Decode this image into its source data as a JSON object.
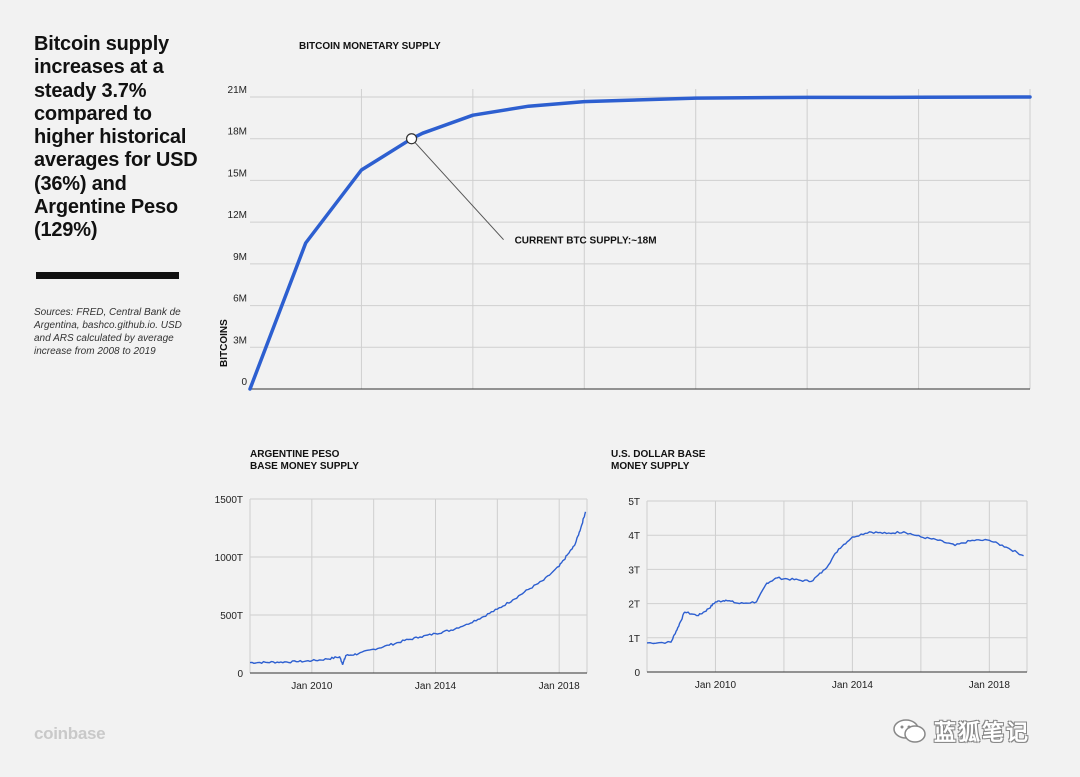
{
  "headline": "Bitcoin supply increases at a steady 3.7% compared to higher historical averages for USD (36%) and Argentine Peso (129%)",
  "sources": "Sources: FRED, Central Bank de Argentina, bashco.github.io. USD and ARS calculated by average increase from 2008 to 2019",
  "brand": "coinbase",
  "watermark": "蓝狐笔记",
  "colors": {
    "series": "#2d5fd0",
    "grid": "#cfcfcf",
    "background": "#f2f2f2",
    "text": "#111111"
  },
  "chart_data": [
    {
      "type": "line",
      "title": "BITCOIN MONETARY SUPPLY",
      "ylabel": "BITCOINS",
      "xlabel": "",
      "ylim": [
        0,
        21
      ],
      "y_tick_labels": [
        "0",
        "3M",
        "6M",
        "9M",
        "12M",
        "15M",
        "18M",
        "21M"
      ],
      "y_tick_values": [
        0,
        3,
        6,
        9,
        12,
        15,
        18,
        21
      ],
      "x_vertical_gridlines": 7,
      "grid": true,
      "series": [
        {
          "values_millions": [
            {
              "x": 0.0,
              "y": 0.0
            },
            {
              "x": 0.5,
              "y": 10.5
            },
            {
              "x": 1.0,
              "y": 15.75
            },
            {
              "x": 1.45,
              "y": 18.0
            },
            {
              "x": 1.55,
              "y": 18.4
            },
            {
              "x": 2.0,
              "y": 19.69
            },
            {
              "x": 2.5,
              "y": 20.34
            },
            {
              "x": 3.0,
              "y": 20.67
            },
            {
              "x": 4.0,
              "y": 20.92
            },
            {
              "x": 5.0,
              "y": 20.97
            },
            {
              "x": 6.0,
              "y": 20.98
            },
            {
              "x": 7.0,
              "y": 21.0
            }
          ]
        }
      ],
      "annotation": {
        "text": "CURRENT BTC SUPPLY:~18M",
        "x": 1.45,
        "y": 18.0
      }
    },
    {
      "type": "line",
      "title_lines": [
        "ARGENTINE PESO",
        "BASE MONEY SUPPLY"
      ],
      "ylim": [
        0,
        1500
      ],
      "y_tick_labels": [
        "0",
        "500T",
        "1000T",
        "1500T"
      ],
      "y_tick_values": [
        0,
        500,
        1000,
        1500
      ],
      "x_tick_labels": [
        "Jan 2010",
        "Jan 2014",
        "Jan 2018"
      ],
      "x_tick_values": [
        2010,
        2014,
        2018
      ],
      "xlim": [
        2008,
        2018.9
      ],
      "grid": true,
      "series": [
        {
          "points": [
            [
              2008.0,
              90
            ],
            [
              2008.5,
              92
            ],
            [
              2009.0,
              95
            ],
            [
              2009.5,
              97
            ],
            [
              2010.0,
              105
            ],
            [
              2010.5,
              120
            ],
            [
              2010.9,
              140
            ],
            [
              2011.0,
              75
            ],
            [
              2011.1,
              150
            ],
            [
              2011.5,
              165
            ],
            [
              2012.0,
              205
            ],
            [
              2012.5,
              240
            ],
            [
              2013.0,
              280
            ],
            [
              2013.5,
              310
            ],
            [
              2014.0,
              340
            ],
            [
              2014.5,
              370
            ],
            [
              2015.0,
              420
            ],
            [
              2015.5,
              480
            ],
            [
              2016.0,
              550
            ],
            [
              2016.5,
              630
            ],
            [
              2017.0,
              720
            ],
            [
              2017.5,
              800
            ],
            [
              2018.0,
              920
            ],
            [
              2018.3,
              1030
            ],
            [
              2018.5,
              1100
            ],
            [
              2018.7,
              1250
            ],
            [
              2018.85,
              1390
            ]
          ]
        }
      ]
    },
    {
      "type": "line",
      "title_lines": [
        "U.S. DOLLAR BASE",
        "MONEY SUPPLY"
      ],
      "ylim": [
        0,
        5
      ],
      "y_tick_labels": [
        "0",
        "1T",
        "2T",
        "3T",
        "4T",
        "5T"
      ],
      "y_tick_values": [
        0,
        1,
        2,
        3,
        4,
        5
      ],
      "x_tick_labels": [
        "Jan 2010",
        "Jan 2014",
        "Jan 2018"
      ],
      "x_tick_values": [
        2010,
        2014,
        2018
      ],
      "xlim": [
        2008,
        2019.1
      ],
      "grid": true,
      "series": [
        {
          "points": [
            [
              2008.0,
              0.85
            ],
            [
              2008.7,
              0.87
            ],
            [
              2008.9,
              1.3
            ],
            [
              2009.1,
              1.75
            ],
            [
              2009.5,
              1.65
            ],
            [
              2009.8,
              1.85
            ],
            [
              2010.0,
              2.05
            ],
            [
              2010.3,
              2.1
            ],
            [
              2010.7,
              2.0
            ],
            [
              2011.2,
              2.05
            ],
            [
              2011.5,
              2.6
            ],
            [
              2011.8,
              2.75
            ],
            [
              2012.3,
              2.7
            ],
            [
              2012.8,
              2.65
            ],
            [
              2013.2,
              3.0
            ],
            [
              2013.6,
              3.6
            ],
            [
              2014.0,
              3.95
            ],
            [
              2014.5,
              4.1
            ],
            [
              2015.0,
              4.05
            ],
            [
              2015.5,
              4.1
            ],
            [
              2016.0,
              3.95
            ],
            [
              2016.5,
              3.85
            ],
            [
              2017.0,
              3.7
            ],
            [
              2017.5,
              3.85
            ],
            [
              2018.0,
              3.85
            ],
            [
              2018.5,
              3.65
            ],
            [
              2019.0,
              3.4
            ]
          ]
        }
      ]
    }
  ]
}
